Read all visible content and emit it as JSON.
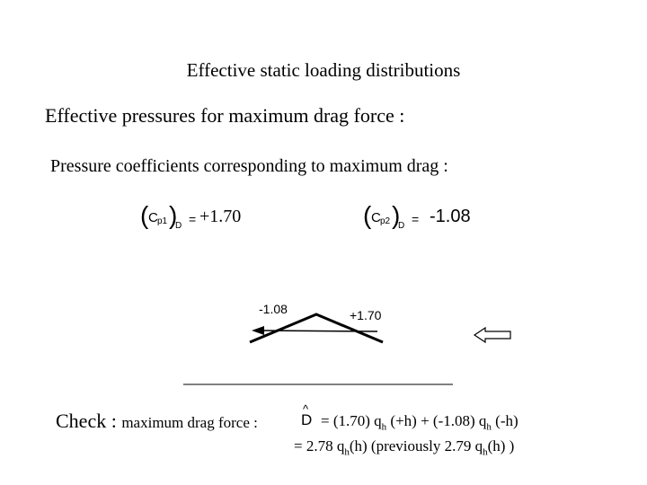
{
  "title": "Effective static loading distributions",
  "subtitle": "Effective pressures for maximum drag force :",
  "coefficients": {
    "heading": "Pressure coefficients corresponding to maximum drag :",
    "cp1": {
      "symbol": "C",
      "sub": "p1",
      "outer_sub": "D",
      "equals": "=",
      "value": "+1.70"
    },
    "cp2": {
      "symbol": "C",
      "sub": "p2",
      "outer_sub": "D",
      "equals": "=",
      "value": "-1.08"
    }
  },
  "diagram": {
    "left_label": "-1.08",
    "right_label": "+1.70"
  },
  "check": {
    "prefix": "Check :",
    "label": "maximum drag force :",
    "symbol": "D",
    "hat": "^",
    "line1": {
      "a": "= (1.70) q",
      "a_sub": "h",
      "b": " (+h)  + (-1.08) q",
      "b_sub": "h",
      "c": " (-h)"
    },
    "line2": {
      "a": "=  2.78 q",
      "a_sub": "h",
      "b": "(h)   (previously 2.79 q",
      "b_sub": "h",
      "c": "(h) )"
    }
  }
}
